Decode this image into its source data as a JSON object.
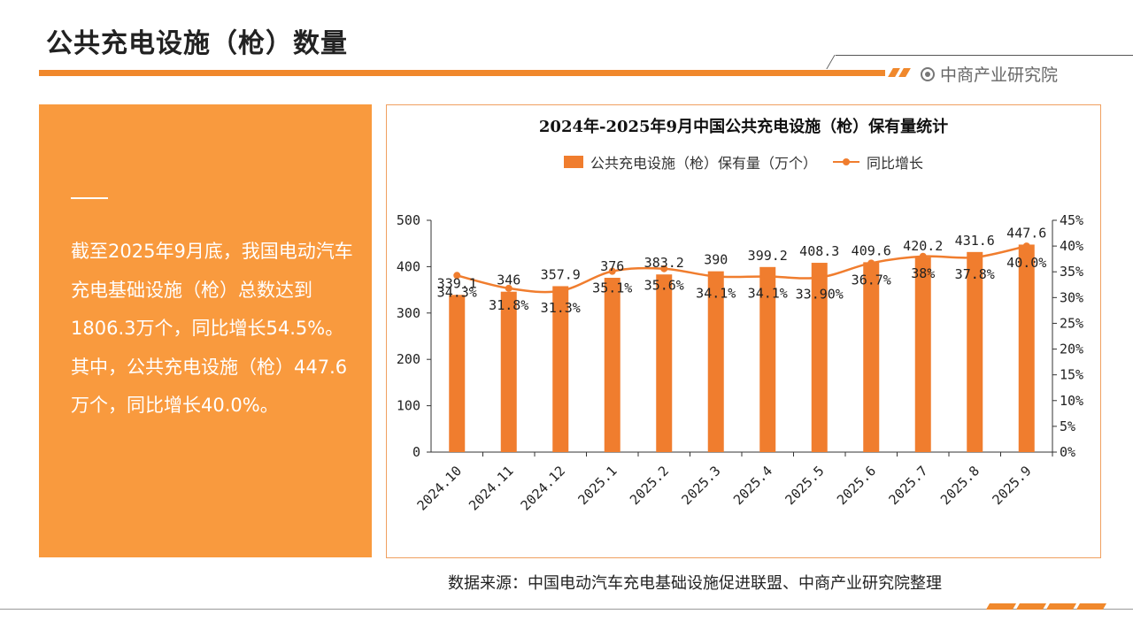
{
  "header": {
    "title": "公共充电设施（枪）数量",
    "brand": "中商产业研究院"
  },
  "summary": {
    "text": "截至2025年9月底，我国电动汽车充电基础设施（枪）总数达到1806.3万个，同比增长54.5%。其中，公共充电设施（枪）447.6万个，同比增长40.0%。"
  },
  "source": "数据来源：中国电动汽车充电基础设施促进联盟、中商产业研究院整理",
  "colors": {
    "accent": "#f0882c",
    "bar": "#f07d2e",
    "panel": "#f99a3e"
  },
  "chart_data": {
    "type": "bar",
    "title": "2024年-2025年9月中国公共充电设施（枪）保有量统计",
    "categories": [
      "2024.10",
      "2024.11",
      "2024.12",
      "2025.1",
      "2025.2",
      "2025.3",
      "2025.4",
      "2025.5",
      "2025.6",
      "2025.7",
      "2025.8",
      "2025.9"
    ],
    "series": [
      {
        "name": "公共充电设施（枪）保有量（万个）",
        "type": "bar",
        "axis": "left",
        "values": [
          339.1,
          346,
          357.9,
          376,
          383.2,
          390,
          399.2,
          408.3,
          409.6,
          420.2,
          431.6,
          447.6
        ],
        "labels": [
          "339.1",
          "346",
          "357.9",
          "376",
          "383.2",
          "390",
          "399.2",
          "408.3",
          "409.6",
          "420.2",
          "431.6",
          "447.6"
        ]
      },
      {
        "name": "同比增长",
        "type": "line",
        "axis": "right",
        "values": [
          34.3,
          31.8,
          31.3,
          35.1,
          35.6,
          34.1,
          34.1,
          33.9,
          36.7,
          38,
          37.8,
          40.0
        ],
        "labels": [
          "34.3%",
          "31.8%",
          "31.3%",
          "35.1%",
          "35.6%",
          "34.1%",
          "34.1%",
          "33.90%",
          "36.7%",
          "38%",
          "37.8%",
          "40.0%"
        ]
      }
    ],
    "y_left": {
      "min": 0,
      "max": 500,
      "ticks": [
        "0",
        "100",
        "200",
        "300",
        "400",
        "500"
      ]
    },
    "y_right": {
      "min": 0,
      "max": 45,
      "ticks": [
        "0%",
        "5%",
        "10%",
        "15%",
        "20%",
        "25%",
        "30%",
        "35%",
        "40%",
        "45%"
      ]
    },
    "legend_position": "top-center",
    "grid": false
  }
}
